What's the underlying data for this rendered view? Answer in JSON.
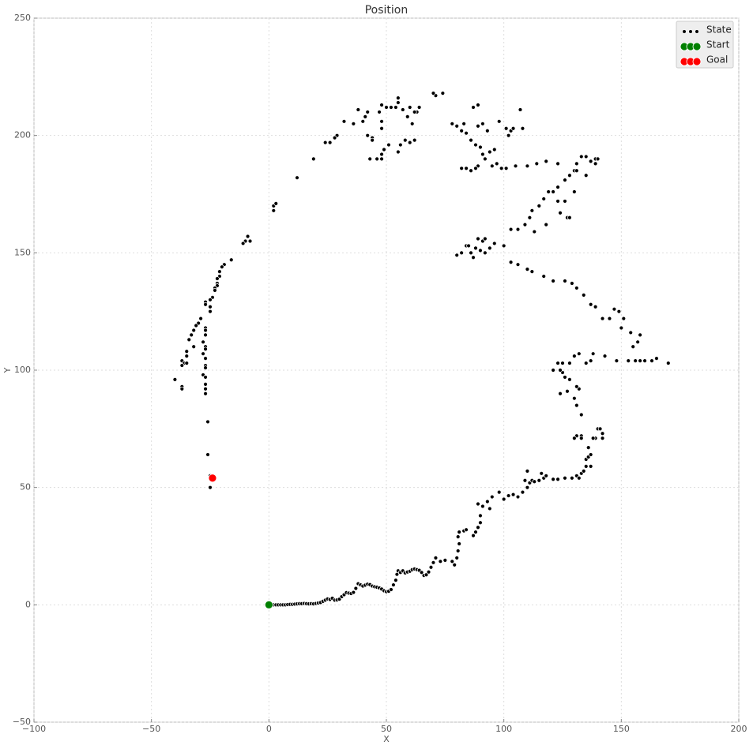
{
  "chart_data": {
    "type": "scatter",
    "title": "Position",
    "x_label": "X",
    "y_label": "Y",
    "xlim": [
      -100,
      200
    ],
    "ylim": [
      -50,
      250
    ],
    "xticks": [
      {
        "value": -100,
        "label": "−100"
      },
      {
        "value": -50,
        "label": "−50"
      },
      0,
      50,
      100,
      150,
      200
    ],
    "yticks": [
      {
        "value": -50,
        "label": "−50"
      },
      0,
      50,
      100,
      150,
      200,
      250
    ],
    "grid": true,
    "legend": "upper right",
    "series": [
      {
        "name": "State",
        "color": "#000000",
        "size": 2.5,
        "x": [
          1,
          2,
          3,
          4,
          5,
          6,
          7,
          8,
          9,
          10,
          11,
          12,
          13,
          14,
          15,
          16,
          17,
          18,
          19,
          20,
          21,
          22,
          23,
          24,
          25,
          26,
          27,
          28,
          29,
          30,
          31,
          32,
          33,
          34,
          35,
          36,
          37,
          38,
          39,
          40,
          41,
          42,
          43,
          44,
          45,
          46,
          47,
          48,
          49,
          50,
          51,
          52,
          53,
          54,
          54.5,
          55,
          56,
          57,
          58,
          59,
          60,
          61,
          62,
          63,
          64,
          65,
          66,
          67,
          68,
          69,
          70,
          71,
          73,
          75,
          78,
          79,
          80,
          80.5,
          81,
          80.5,
          81,
          83,
          84,
          87,
          88,
          89,
          90,
          90,
          91,
          89,
          93,
          94,
          95,
          98,
          100,
          102,
          104,
          106,
          108,
          109,
          110,
          111,
          112,
          113,
          110,
          115,
          117,
          116,
          118,
          121,
          123,
          126,
          129,
          131,
          132,
          133,
          134,
          135,
          135,
          136,
          137,
          137,
          136,
          139,
          138,
          140,
          141,
          142,
          142,
          133,
          133,
          131,
          130,
          133,
          131,
          130,
          132,
          131,
          127,
          128,
          126,
          124,
          125,
          124,
          121,
          123,
          125,
          128,
          130,
          132,
          135,
          137,
          138,
          143,
          148,
          153,
          156,
          158,
          160,
          163,
          165,
          170,
          155,
          157,
          158,
          154,
          150,
          151,
          149,
          147,
          145,
          142,
          139,
          137,
          134,
          131,
          129,
          126,
          121,
          117,
          112,
          110,
          106,
          103,
          100,
          96,
          94,
          91,
          88,
          86,
          84,
          82,
          80,
          90,
          92,
          87,
          85,
          89,
          92,
          103,
          106,
          109,
          111,
          112,
          115,
          117,
          119,
          121,
          123,
          126,
          128,
          130,
          131,
          133,
          135,
          137,
          139,
          140,
          139,
          127,
          128,
          124,
          130,
          126,
          123,
          118,
          113,
          135,
          131,
          123,
          118,
          114,
          110,
          105,
          101,
          99,
          97,
          95,
          92,
          91,
          89,
          88,
          86,
          84,
          82,
          96,
          94,
          90,
          88,
          86,
          84,
          82,
          80,
          78,
          83,
          89,
          91,
          93,
          89,
          87,
          101,
          102,
          103,
          104,
          98,
          107,
          108,
          74,
          71,
          70,
          63,
          62,
          60,
          59,
          61,
          62,
          60,
          58,
          56,
          55,
          51,
          48,
          49,
          48,
          46,
          43,
          44,
          42,
          44,
          48,
          48,
          47,
          48,
          50,
          52,
          54,
          55,
          55,
          57,
          64,
          42,
          41,
          40,
          38,
          36,
          32,
          29,
          28,
          26,
          24,
          19,
          12,
          2,
          2,
          3,
          -8,
          -9,
          -10,
          -11,
          -16,
          -19,
          -20,
          -21,
          -21,
          -22,
          -22,
          -22,
          -23,
          -23,
          -24,
          -25,
          -25,
          -25,
          -27,
          -27,
          -29,
          -30,
          -31,
          -32,
          -33,
          -34,
          -32,
          -35,
          -35,
          -37,
          -36,
          -37,
          -35,
          -40,
          -37,
          -37,
          -27,
          -27,
          -27,
          -28,
          -27,
          -27,
          -28,
          -27,
          -27,
          -27,
          -28,
          -27,
          -27,
          -27,
          -27,
          -26,
          -26,
          -25,
          -25
        ],
        "values": [
          0,
          0,
          0,
          0,
          0,
          0,
          0,
          0.1,
          0.2,
          0.2,
          0.3,
          0.4,
          0.5,
          0.5,
          0.6,
          0.5,
          0.4,
          0.5,
          0.4,
          0.6,
          0.8,
          1,
          1.5,
          2,
          2.5,
          2.3,
          2.8,
          2,
          2.1,
          2.4,
          3.5,
          4.3,
          5.2,
          5,
          4.8,
          5.3,
          7,
          9,
          8.5,
          8,
          8.4,
          8.8,
          8.6,
          8,
          7.7,
          7.5,
          7.2,
          6.7,
          6,
          5.6,
          5.8,
          6.5,
          8.5,
          10.5,
          13,
          14.5,
          13.8,
          14.5,
          13.6,
          14,
          14.3,
          15,
          15.3,
          15,
          14.7,
          13.8,
          12.5,
          12.8,
          14,
          16,
          18,
          20,
          18.5,
          19,
          18.5,
          17,
          20,
          23,
          26,
          29,
          31,
          31.5,
          32,
          29.5,
          31,
          33,
          35,
          38,
          42,
          43,
          44,
          41,
          46,
          48,
          45,
          46.5,
          47,
          46,
          48,
          53,
          50,
          52,
          53,
          52.5,
          57,
          53,
          54,
          56,
          55,
          53.5,
          53.5,
          54,
          54,
          55,
          54,
          56,
          57,
          59,
          62,
          63,
          64,
          59,
          67,
          71,
          71,
          75,
          75,
          71,
          73,
          72,
          71,
          72,
          71,
          81,
          85,
          88,
          92,
          93,
          91,
          96,
          97,
          90,
          99,
          100,
          100,
          103,
          103,
          103,
          106,
          107,
          103,
          104,
          107,
          106,
          104,
          104,
          104,
          104,
          104,
          104,
          105,
          103,
          110,
          112,
          115,
          116,
          118,
          122,
          125,
          126,
          122,
          122,
          127,
          128,
          132,
          135,
          137,
          138,
          138,
          140,
          142,
          143,
          145,
          146,
          153,
          154,
          152,
          155,
          152,
          150,
          153,
          150,
          149,
          151,
          150,
          148,
          153,
          156,
          156,
          160,
          160,
          162,
          165,
          168,
          170,
          173,
          176,
          176,
          178,
          181,
          183,
          185,
          188,
          191,
          191,
          189,
          190,
          190,
          188,
          165,
          165,
          167,
          176,
          172,
          172,
          162,
          159,
          183,
          185,
          188,
          189,
          188,
          187,
          187,
          186,
          186,
          188,
          187,
          190,
          192,
          187,
          186,
          185,
          186,
          186,
          194,
          193,
          195,
          196,
          198,
          201,
          202,
          204,
          205,
          205,
          204,
          205,
          202,
          213,
          212,
          203,
          200,
          202,
          203,
          206,
          211,
          203,
          218,
          217,
          218,
          210,
          210,
          212,
          208,
          205,
          198,
          197,
          198,
          196,
          193,
          196,
          192,
          194,
          190,
          190,
          190,
          199,
          200,
          198,
          203,
          206,
          210,
          213,
          212,
          212,
          212,
          214,
          216,
          211,
          212,
          210,
          208,
          206,
          211,
          205,
          206,
          200,
          199,
          197,
          197,
          190,
          182,
          168,
          170,
          171,
          155,
          157,
          155,
          154,
          147,
          145,
          144,
          142,
          140,
          139,
          137,
          136,
          135,
          134,
          131,
          130,
          127,
          125,
          129,
          128,
          122,
          120,
          119,
          117,
          115,
          113,
          110,
          108,
          106,
          104,
          103,
          102,
          103,
          96,
          93,
          92,
          118,
          117,
          115,
          112,
          110,
          109,
          107,
          105,
          102,
          101,
          98,
          97,
          94,
          92,
          90,
          78,
          64,
          55,
          50
        ]
      },
      {
        "name": "Start",
        "color": "#008000",
        "size": 5,
        "x": [
          0
        ],
        "values": [
          0
        ]
      },
      {
        "name": "Goal",
        "color": "#ff0000",
        "size": 5,
        "x": [
          -24
        ],
        "values": [
          54
        ]
      }
    ]
  }
}
